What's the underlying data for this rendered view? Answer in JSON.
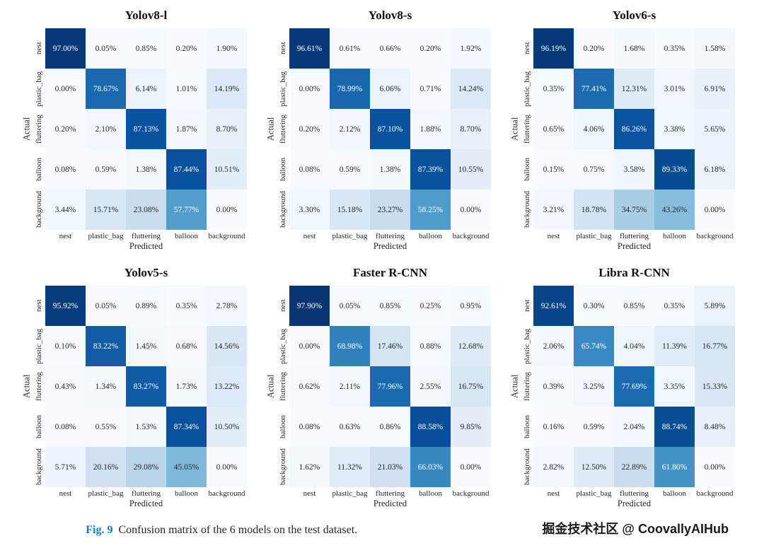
{
  "colors": {
    "fig_label_blue": "#1f77b4",
    "cell_text_dark": "#262626",
    "cell_text_light": "#ffffff",
    "colormap_low": "#f7fbff",
    "colormap_high": "#08306b"
  },
  "axis": {
    "actual": "Actual",
    "predicted": "Predicted"
  },
  "classes": [
    "nest",
    "plastic_bag",
    "fluttering",
    "balloon",
    "background"
  ],
  "caption": {
    "label": "Fig. 9",
    "text": "Confusion matrix of the 6 models on the test dataset."
  },
  "watermark": "掘金技术社区 @ CoovallyAIHub",
  "chart_data": [
    {
      "type": "heatmap",
      "title": "Yolov8-l",
      "xlabel": "Predicted",
      "ylabel": "Actual",
      "x_categories": [
        "nest",
        "plastic_bag",
        "fluttering",
        "balloon",
        "background"
      ],
      "y_categories": [
        "nest",
        "plastic_bag",
        "fluttering",
        "balloon",
        "background"
      ],
      "values_percent": [
        [
          97.0,
          0.05,
          0.85,
          0.2,
          1.9
        ],
        [
          0.0,
          78.67,
          6.14,
          1.01,
          14.19
        ],
        [
          0.2,
          2.1,
          87.13,
          1.87,
          8.7
        ],
        [
          0.08,
          0.59,
          1.38,
          87.44,
          10.51
        ],
        [
          3.44,
          15.71,
          23.08,
          57.77,
          0.0
        ]
      ]
    },
    {
      "type": "heatmap",
      "title": "Yolov8-s",
      "xlabel": "Predicted",
      "ylabel": "Actual",
      "x_categories": [
        "nest",
        "plastic_bag",
        "fluttering",
        "balloon",
        "background"
      ],
      "y_categories": [
        "nest",
        "plastic_bag",
        "fluttering",
        "balloon",
        "background"
      ],
      "values_percent": [
        [
          96.61,
          0.61,
          0.66,
          0.2,
          1.92
        ],
        [
          0.0,
          78.99,
          6.06,
          0.71,
          14.24
        ],
        [
          0.2,
          2.12,
          87.1,
          1.88,
          8.7
        ],
        [
          0.08,
          0.59,
          1.38,
          87.39,
          10.55
        ],
        [
          3.3,
          15.18,
          23.27,
          58.25,
          0.0
        ]
      ]
    },
    {
      "type": "heatmap",
      "title": "Yolov6-s",
      "xlabel": "Predicted",
      "ylabel": "Actual",
      "x_categories": [
        "nest",
        "plastic_bag",
        "fluttering",
        "balloon",
        "background"
      ],
      "y_categories": [
        "nest",
        "plastic_bag",
        "fluttering",
        "balloon",
        "background"
      ],
      "values_percent": [
        [
          96.19,
          0.2,
          1.68,
          0.35,
          1.58
        ],
        [
          0.35,
          77.41,
          12.31,
          3.01,
          6.91
        ],
        [
          0.65,
          4.06,
          86.26,
          3.38,
          5.65
        ],
        [
          0.15,
          0.75,
          3.58,
          89.33,
          6.18
        ],
        [
          3.21,
          18.78,
          34.75,
          43.26,
          0.0
        ]
      ]
    },
    {
      "type": "heatmap",
      "title": "Yolov5-s",
      "xlabel": "Predicted",
      "ylabel": "Actual",
      "x_categories": [
        "nest",
        "plastic_bag",
        "fluttering",
        "balloon",
        "background"
      ],
      "y_categories": [
        "nest",
        "plastic_bag",
        "fluttering",
        "balloon",
        "background"
      ],
      "values_percent": [
        [
          95.92,
          0.05,
          0.89,
          0.35,
          2.78
        ],
        [
          0.1,
          83.22,
          1.45,
          0.68,
          14.56
        ],
        [
          0.43,
          1.34,
          83.27,
          1.73,
          13.22
        ],
        [
          0.08,
          0.55,
          1.53,
          87.34,
          10.5
        ],
        [
          5.71,
          20.16,
          29.08,
          45.05,
          0.0
        ]
      ]
    },
    {
      "type": "heatmap",
      "title": "Faster R-CNN",
      "xlabel": "Predicted",
      "ylabel": "Actual",
      "x_categories": [
        "nest",
        "plastic_bag",
        "fluttering",
        "balloon",
        "background"
      ],
      "y_categories": [
        "nest",
        "plastic_bag",
        "fluttering",
        "balloon",
        "background"
      ],
      "values_percent": [
        [
          97.9,
          0.05,
          0.85,
          0.25,
          0.95
        ],
        [
          0.0,
          68.98,
          17.46,
          0.88,
          12.68
        ],
        [
          0.62,
          2.11,
          77.96,
          2.55,
          16.75
        ],
        [
          0.08,
          0.63,
          0.86,
          88.58,
          9.85
        ],
        [
          1.62,
          11.32,
          21.03,
          66.03,
          0.0
        ]
      ]
    },
    {
      "type": "heatmap",
      "title": "Libra R-CNN",
      "xlabel": "Predicted",
      "ylabel": "Actual",
      "x_categories": [
        "nest",
        "plastic_bag",
        "fluttering",
        "balloon",
        "background"
      ],
      "y_categories": [
        "nest",
        "plastic_bag",
        "fluttering",
        "balloon",
        "background"
      ],
      "values_percent": [
        [
          92.61,
          0.3,
          0.85,
          0.35,
          5.89
        ],
        [
          2.06,
          65.74,
          4.04,
          11.39,
          16.77
        ],
        [
          0.39,
          3.25,
          77.69,
          3.35,
          15.33
        ],
        [
          0.16,
          0.59,
          2.04,
          88.74,
          8.48
        ],
        [
          2.82,
          12.5,
          22.89,
          61.8,
          0.0
        ]
      ]
    }
  ]
}
